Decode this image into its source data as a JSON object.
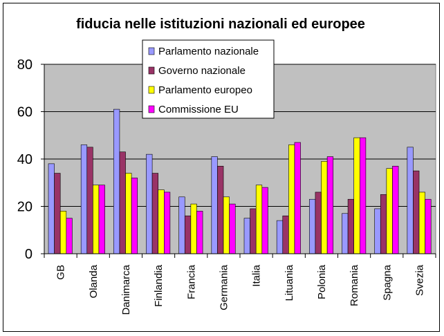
{
  "chart_data": {
    "type": "bar",
    "title": "fiducia nelle istituzioni nazionali ed europee",
    "xlabel": "",
    "ylabel": "",
    "ylim": [
      0,
      80
    ],
    "yticks": [
      "0",
      "20",
      "40",
      "60",
      "80"
    ],
    "grid": true,
    "legend_position": "top-center",
    "categories": [
      "GB",
      "Olanda",
      "Danimarca",
      "Finlandia",
      "Francia",
      "Germania",
      "Italia",
      "Lituania",
      "Polonia",
      "Romania",
      "Spagna",
      "Svezia"
    ],
    "series": [
      {
        "name": "Parlamento nazionale",
        "color": "#9999ff",
        "values": [
          38,
          46,
          61,
          42,
          24,
          41,
          15,
          14,
          23,
          17,
          19,
          45
        ]
      },
      {
        "name": "Governo nazionale",
        "color": "#993366",
        "values": [
          34,
          45,
          43,
          34,
          16,
          37,
          19,
          16,
          26,
          23,
          25,
          35
        ]
      },
      {
        "name": "Parlamento europeo",
        "color": "#ffff00",
        "values": [
          18,
          29,
          34,
          27,
          21,
          24,
          29,
          46,
          39,
          49,
          36,
          26
        ]
      },
      {
        "name": "Commissione EU",
        "color": "#ff00ff",
        "values": [
          15,
          29,
          32,
          26,
          18,
          21,
          28,
          47,
          41,
          49,
          37,
          23
        ]
      }
    ],
    "plot_background": "#c0c0c0"
  }
}
